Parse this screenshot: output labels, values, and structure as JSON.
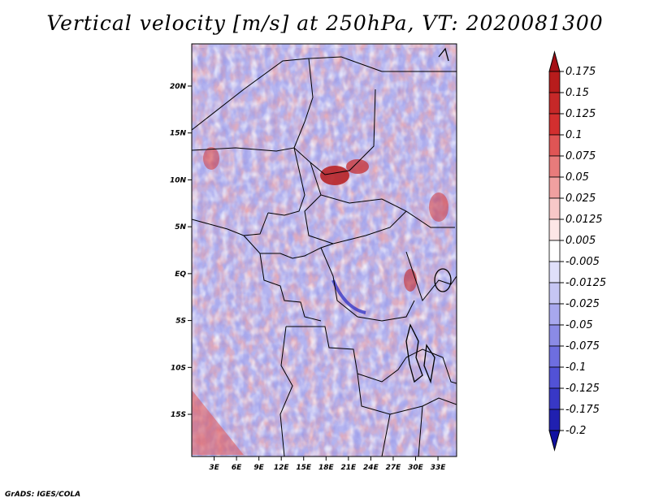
{
  "title": "Vertical velocity [m/s] at 250hPa, VT: 2020081300",
  "footer": "GrADS: IGES/COLA",
  "map": {
    "lon_min": 0,
    "lon_max": 35.5,
    "lat_min": -19.5,
    "lat_max": 24.5,
    "lat_ticks": [
      {
        "value": 20,
        "label": "20N"
      },
      {
        "value": 15,
        "label": "15N"
      },
      {
        "value": 10,
        "label": "10N"
      },
      {
        "value": 5,
        "label": "5N"
      },
      {
        "value": 0,
        "label": "EQ"
      },
      {
        "value": -5,
        "label": "5S"
      },
      {
        "value": -10,
        "label": "10S"
      },
      {
        "value": -15,
        "label": "15S"
      }
    ],
    "lon_ticks": [
      {
        "value": 3,
        "label": "3E"
      },
      {
        "value": 6,
        "label": "6E"
      },
      {
        "value": 9,
        "label": "9E"
      },
      {
        "value": 12,
        "label": "12E"
      },
      {
        "value": 15,
        "label": "15E"
      },
      {
        "value": 18,
        "label": "18E"
      },
      {
        "value": 21,
        "label": "21E"
      },
      {
        "value": 24,
        "label": "24E"
      },
      {
        "value": 27,
        "label": "27E"
      },
      {
        "value": 30,
        "label": "30E"
      },
      {
        "value": 33,
        "label": "33E"
      }
    ]
  },
  "colorbar": {
    "levels": [
      "0.175",
      "0.15",
      "0.125",
      "0.1",
      "0.075",
      "0.05",
      "0.025",
      "0.0125",
      "0.005",
      "-0.005",
      "-0.0125",
      "-0.025",
      "-0.05",
      "-0.075",
      "-0.1",
      "-0.125",
      "-0.175",
      "-0.2"
    ],
    "colors": [
      "#a50f15",
      "#b71c1c",
      "#c62828",
      "#d32f2f",
      "#e05555",
      "#e87b7b",
      "#f0a0a0",
      "#f7c8c8",
      "#fde6e6",
      "#ffffff",
      "#e0e0fa",
      "#c6c6f4",
      "#a8a8ee",
      "#8b8be6",
      "#6e6ee0",
      "#5252d6",
      "#3838c6",
      "#2020b0",
      "#1010a0"
    ]
  }
}
